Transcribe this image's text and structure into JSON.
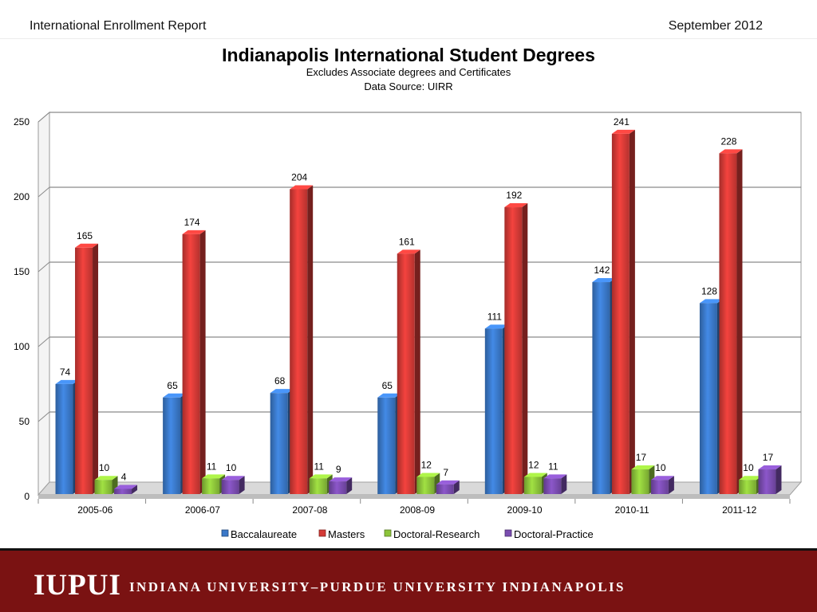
{
  "header": {
    "report_title": "International Enrollment Report",
    "date": "September 2012"
  },
  "footer": {
    "logo_text": "IUPUI",
    "institution": "INDIANA UNIVERSITY–PURDUE UNIVERSITY INDIANAPOLIS",
    "background_color": "#7a1212"
  },
  "chart_data": {
    "type": "bar",
    "title": "Indianapolis International Student Degrees",
    "subtitle_lines": [
      "Excludes Associate degrees and Certificates",
      "Data Source: UIRR"
    ],
    "categories": [
      "2005-06",
      "2006-07",
      "2007-08",
      "2008-09",
      "2009-10",
      "2010-11",
      "2011-12"
    ],
    "series": [
      {
        "name": "Baccalaureate",
        "color": "#3a78c8",
        "values": [
          74,
          65,
          68,
          65,
          111,
          142,
          128
        ]
      },
      {
        "name": "Masters",
        "color": "#d43a36",
        "values": [
          165,
          174,
          204,
          161,
          192,
          241,
          228
        ]
      },
      {
        "name": "Doctoral-Research",
        "color": "#8cc43a",
        "values": [
          10,
          11,
          11,
          12,
          12,
          17,
          10
        ]
      },
      {
        "name": "Doctoral-Practice",
        "color": "#7a4cb0",
        "values": [
          4,
          10,
          9,
          7,
          11,
          10,
          17
        ]
      }
    ],
    "y_ticks": [
      0,
      50,
      100,
      150,
      200,
      250
    ],
    "ylim": [
      0,
      250
    ],
    "grid": true,
    "legend_position": "bottom",
    "style": "3d-bar"
  }
}
